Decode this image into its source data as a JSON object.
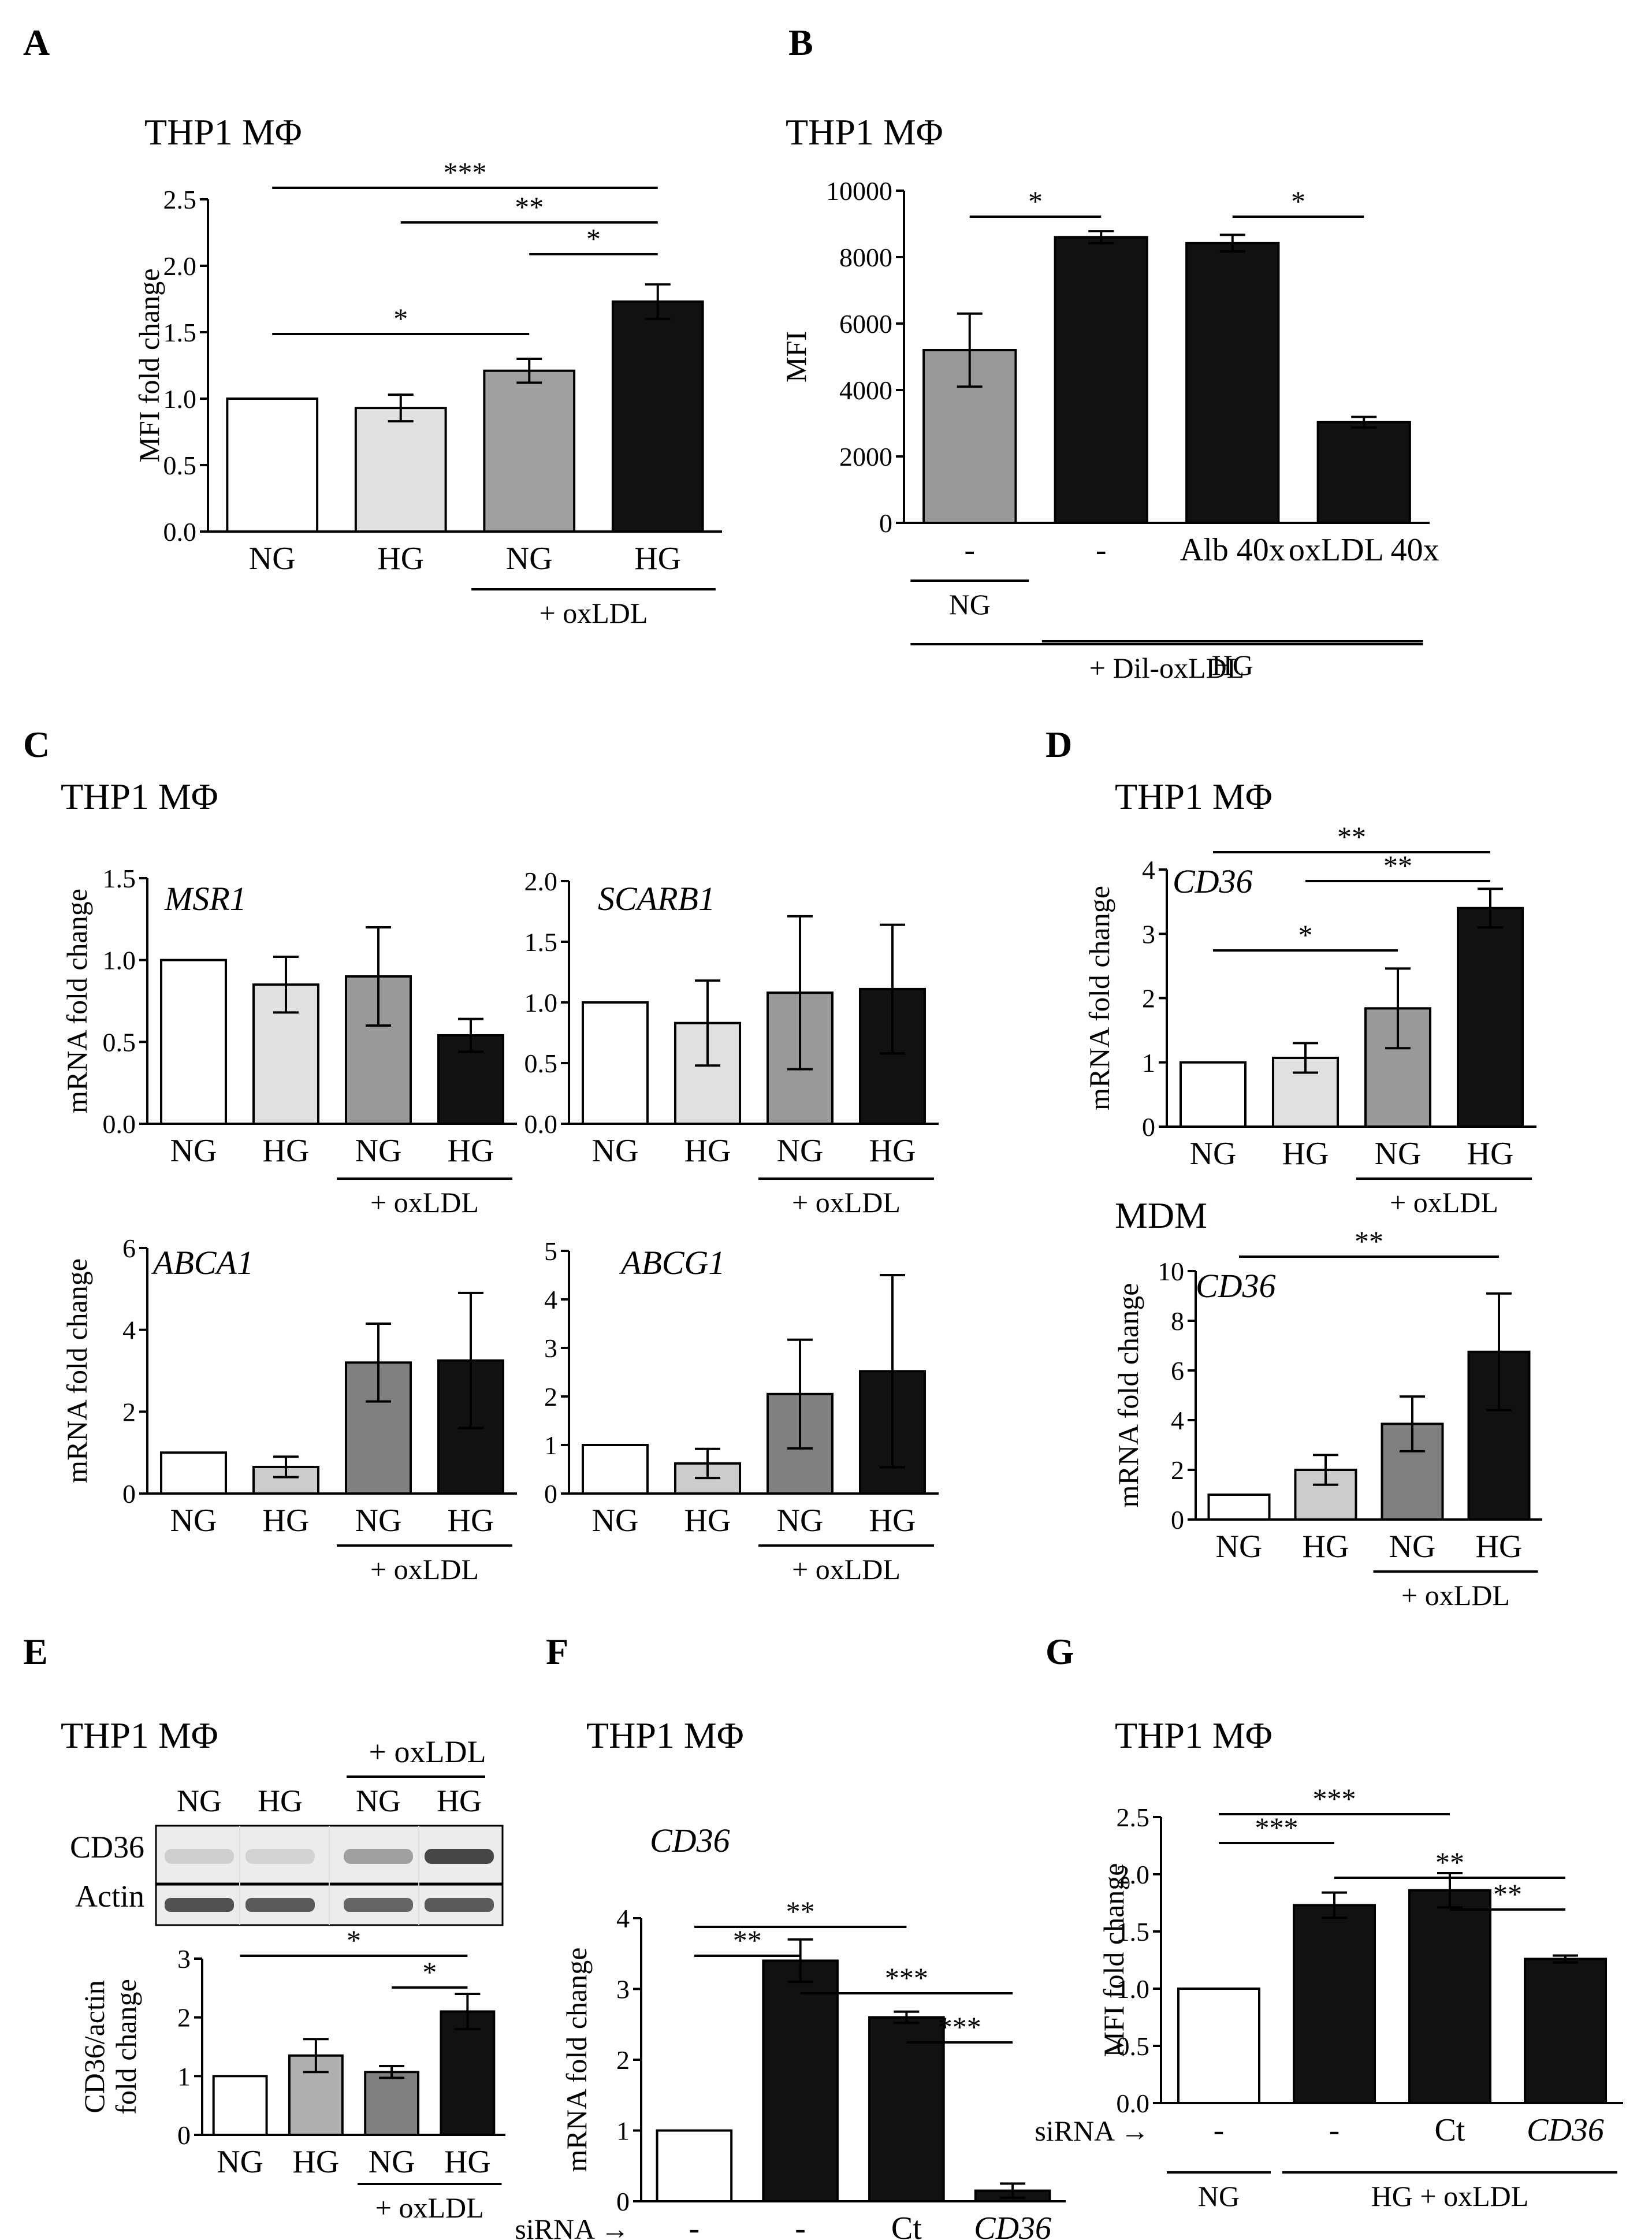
{
  "chart_data": [
    {
      "type": "bar",
      "panel": "A",
      "title": "THP1 MΦ",
      "ylabel": "MFI fold change",
      "ylim": [
        0,
        2.5
      ],
      "yticks": [
        "0.0",
        "0.5",
        "1.0",
        "1.5",
        "2.0",
        "2.5"
      ],
      "categories": [
        "NG",
        "HG",
        "NG",
        "HG"
      ],
      "values": [
        1.0,
        0.93,
        1.21,
        1.73
      ],
      "errors": [
        0,
        0.1,
        0.09,
        0.13
      ],
      "colors": [
        "#ffffff",
        "#e0e0e0",
        "#a0a0a0",
        "#111111"
      ],
      "groups": [
        {
          "label": "+ oxLDL",
          "from": 2,
          "to": 3
        }
      ],
      "significance": [
        {
          "from": 0,
          "to": 3,
          "label": "***"
        },
        {
          "from": 1,
          "to": 3,
          "label": "**"
        },
        {
          "from": 2,
          "to": 3,
          "label": "*"
        },
        {
          "from": 0,
          "to": 2,
          "label": "*"
        }
      ]
    },
    {
      "type": "bar",
      "panel": "B",
      "title": "THP1 MΦ",
      "ylabel": "MFI",
      "ylim": [
        0,
        10000
      ],
      "yticks": [
        "0",
        "2000",
        "4000",
        "6000",
        "8000",
        "10000"
      ],
      "categories": [
        "-",
        "-",
        "Alb 40x",
        "oxLDL 40x"
      ],
      "values": [
        5200,
        8600,
        8420,
        3030
      ],
      "errors": [
        1100,
        180,
        250,
        160
      ],
      "colors": [
        "#999999",
        "#111111",
        "#111111",
        "#111111"
      ],
      "groups": [
        {
          "label": "NG",
          "from": 0,
          "to": 0
        },
        {
          "label": "HG",
          "from": 1,
          "to": 3
        },
        {
          "label": "+ Dil-oxLDL",
          "from": 0,
          "to": 3
        }
      ],
      "significance": [
        {
          "from": 0,
          "to": 1,
          "label": "*"
        },
        {
          "from": 2,
          "to": 3,
          "label": "*"
        }
      ]
    },
    {
      "type": "bar",
      "panel": "C",
      "title": "THP1 MΦ",
      "gene": "MSR1",
      "ylabel": "mRNA  fold change",
      "ylim": [
        0,
        1.5
      ],
      "yticks": [
        "0.0",
        "0.5",
        "1.0",
        "1.5"
      ],
      "categories": [
        "NG",
        "HG",
        "NG",
        "HG"
      ],
      "values": [
        1.0,
        0.85,
        0.9,
        0.54
      ],
      "errors": [
        0,
        0.17,
        0.3,
        0.1
      ],
      "colors": [
        "#ffffff",
        "#e0e0e0",
        "#999999",
        "#111111"
      ],
      "groups": [
        {
          "label": "+ oxLDL",
          "from": 2,
          "to": 3
        }
      ],
      "significance": []
    },
    {
      "type": "bar",
      "panel": "C",
      "gene": "SCARB1",
      "ylabel": "",
      "ylim": [
        0,
        2.0
      ],
      "yticks": [
        "0.0",
        "0.5",
        "1.0",
        "1.5",
        "2.0"
      ],
      "categories": [
        "NG",
        "HG",
        "NG",
        "HG"
      ],
      "values": [
        1.0,
        0.83,
        1.08,
        1.11
      ],
      "errors": [
        0,
        0.35,
        0.63,
        0.53
      ],
      "colors": [
        "#ffffff",
        "#e0e0e0",
        "#999999",
        "#111111"
      ],
      "groups": [
        {
          "label": "+ oxLDL",
          "from": 2,
          "to": 3
        }
      ],
      "significance": []
    },
    {
      "type": "bar",
      "panel": "C",
      "gene": "ABCA1",
      "ylabel": "mRNA  fold change",
      "ylim": [
        0,
        6
      ],
      "yticks": [
        "0",
        "2",
        "4",
        "6"
      ],
      "categories": [
        "NG",
        "HG",
        "NG",
        "HG"
      ],
      "values": [
        1.0,
        0.65,
        3.2,
        3.25
      ],
      "errors": [
        0,
        0.25,
        0.95,
        1.65
      ],
      "colors": [
        "#ffffff",
        "#cccccc",
        "#808080",
        "#111111"
      ],
      "groups": [
        {
          "label": "+ oxLDL",
          "from": 2,
          "to": 3
        }
      ],
      "significance": []
    },
    {
      "type": "bar",
      "panel": "C",
      "gene": "ABCG1",
      "ylabel": "",
      "ylim": [
        0,
        5
      ],
      "yticks": [
        "0",
        "1",
        "2",
        "3",
        "4",
        "5"
      ],
      "categories": [
        "NG",
        "HG",
        "NG",
        "HG"
      ],
      "values": [
        1.0,
        0.62,
        2.05,
        2.52
      ],
      "errors": [
        0,
        0.3,
        1.12,
        1.98
      ],
      "colors": [
        "#ffffff",
        "#cccccc",
        "#808080",
        "#111111"
      ],
      "groups": [
        {
          "label": "+ oxLDL",
          "from": 2,
          "to": 3
        }
      ],
      "significance": []
    },
    {
      "type": "bar",
      "panel": "D",
      "title": "THP1 MΦ",
      "gene": "CD36",
      "ylabel": "mRNA fold change",
      "ylim": [
        0,
        4
      ],
      "yticks": [
        "0",
        "1",
        "2",
        "3",
        "4"
      ],
      "categories": [
        "NG",
        "HG",
        "NG",
        "HG"
      ],
      "values": [
        1.0,
        1.07,
        1.84,
        3.4
      ],
      "errors": [
        0,
        0.23,
        0.62,
        0.3
      ],
      "colors": [
        "#ffffff",
        "#e0e0e0",
        "#999999",
        "#111111"
      ],
      "groups": [
        {
          "label": "+ oxLDL",
          "from": 2,
          "to": 3
        }
      ],
      "significance": [
        {
          "from": 0,
          "to": 3,
          "label": "**"
        },
        {
          "from": 1,
          "to": 3,
          "label": "**"
        },
        {
          "from": 0,
          "to": 2,
          "label": "*"
        }
      ]
    },
    {
      "type": "bar",
      "panel": "D",
      "title": "MDM",
      "gene": "CD36",
      "ylabel": "mRNA  fold change",
      "ylim": [
        0,
        10
      ],
      "yticks": [
        "0",
        "2",
        "4",
        "6",
        "8",
        "10"
      ],
      "categories": [
        "NG",
        "HG",
        "NG",
        "HG"
      ],
      "values": [
        1.0,
        2.0,
        3.85,
        6.75
      ],
      "errors": [
        0,
        0.6,
        1.1,
        2.35
      ],
      "colors": [
        "#ffffff",
        "#cccccc",
        "#808080",
        "#111111"
      ],
      "groups": [
        {
          "label": "+ oxLDL",
          "from": 2,
          "to": 3
        }
      ],
      "significance": [
        {
          "from": 0,
          "to": 3,
          "label": "**"
        }
      ]
    },
    {
      "type": "bar",
      "panel": "E",
      "title": "THP1 MΦ",
      "ylabel": "CD36/actin",
      "ylabel2": "fold change",
      "ylim": [
        0,
        3
      ],
      "yticks": [
        "0",
        "1",
        "2",
        "3"
      ],
      "categories": [
        "NG",
        "HG",
        "NG",
        "HG"
      ],
      "values": [
        1.0,
        1.35,
        1.07,
        2.1
      ],
      "errors": [
        0,
        0.28,
        0.1,
        0.3
      ],
      "colors": [
        "#ffffff",
        "#b0b0b0",
        "#808080",
        "#111111"
      ],
      "groups": [
        {
          "label": "+ oxLDL",
          "from": 2,
          "to": 3
        }
      ],
      "significance": [
        {
          "from": 0,
          "to": 3,
          "label": "*"
        },
        {
          "from": 2,
          "to": 3,
          "label": "*"
        }
      ]
    },
    {
      "type": "bar",
      "panel": "F",
      "title": "THP1 MΦ",
      "gene": "CD36",
      "ylabel": "mRNA fold change",
      "ylim": [
        0,
        4
      ],
      "yticks": [
        "0",
        "1",
        "2",
        "3",
        "4"
      ],
      "prefix": "siRNA →",
      "categories": [
        "-",
        "-",
        "Ct",
        "CD36"
      ],
      "italic_categories": [
        3
      ],
      "values": [
        1.0,
        3.4,
        2.6,
        0.15
      ],
      "errors": [
        0,
        0.3,
        0.08,
        0.1
      ],
      "colors": [
        "#ffffff",
        "#111111",
        "#111111",
        "#111111"
      ],
      "groups": [
        {
          "label": "NG",
          "from": 0,
          "to": 0
        },
        {
          "label": "HG + oxLDL",
          "from": 1,
          "to": 3
        }
      ],
      "significance": [
        {
          "from": 0,
          "to": 2,
          "label": "**"
        },
        {
          "from": 0,
          "to": 1,
          "label": "**"
        },
        {
          "from": 1,
          "to": 3,
          "label": "***"
        },
        {
          "from": 2,
          "to": 3,
          "label": "***"
        }
      ]
    },
    {
      "type": "bar",
      "panel": "G",
      "title": "THP1 MΦ",
      "ylabel": "MFI fold change",
      "ylim": [
        0,
        2.5
      ],
      "yticks": [
        "0.0",
        "0.5",
        "1.0",
        "1.5",
        "2.0",
        "2.5"
      ],
      "prefix": "siRNA →",
      "categories": [
        "-",
        "-",
        "Ct",
        "CD36"
      ],
      "italic_categories": [
        3
      ],
      "values": [
        1.0,
        1.73,
        1.86,
        1.26
      ],
      "errors": [
        0,
        0.11,
        0.15,
        0.03
      ],
      "colors": [
        "#ffffff",
        "#111111",
        "#111111",
        "#111111"
      ],
      "groups": [
        {
          "label": "NG",
          "from": 0,
          "to": 0
        },
        {
          "label": "HG + oxLDL",
          "from": 1,
          "to": 3
        }
      ],
      "significance": [
        {
          "from": 0,
          "to": 2,
          "label": "***"
        },
        {
          "from": 0,
          "to": 1,
          "label": "***"
        },
        {
          "from": 1,
          "to": 3,
          "label": "**"
        },
        {
          "from": 2,
          "to": 3,
          "label": "**"
        }
      ]
    }
  ],
  "panels": {
    "letters": [
      "A",
      "B",
      "C",
      "D",
      "E",
      "F",
      "G"
    ],
    "c_title": "THP1 MΦ"
  },
  "blot": {
    "header": "+ oxLDL",
    "lanes": [
      "NG",
      "HG",
      "NG",
      "HG"
    ],
    "rows": [
      "CD36",
      "Actin"
    ],
    "cd36_intensity": [
      0.12,
      0.1,
      0.35,
      0.8
    ],
    "actin_intensity": [
      0.75,
      0.7,
      0.65,
      0.7
    ]
  }
}
